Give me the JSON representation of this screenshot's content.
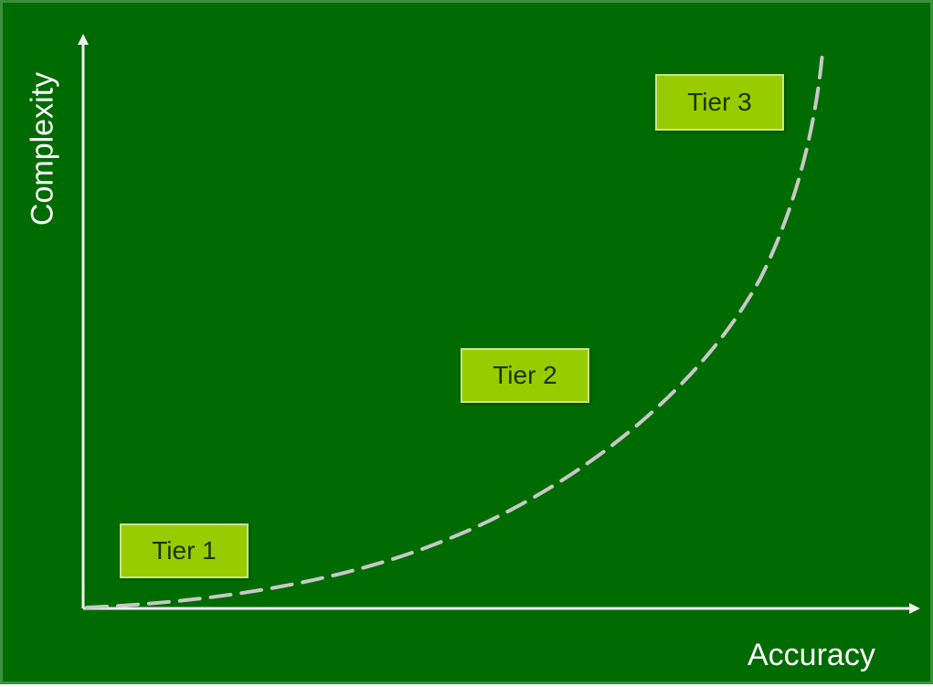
{
  "diagram": {
    "x_axis_label": "Accuracy",
    "y_axis_label": "Complexity",
    "tiers": [
      {
        "label": "Tier 1"
      },
      {
        "label": "Tier 2"
      },
      {
        "label": "Tier 3"
      }
    ],
    "curve": {
      "style": "dashed",
      "shape": "exponential"
    },
    "colors": {
      "background": "#006b00",
      "tier_box_fill": "#99cc00",
      "axis": "#ffffff",
      "curve": "#c8c8c8"
    }
  }
}
